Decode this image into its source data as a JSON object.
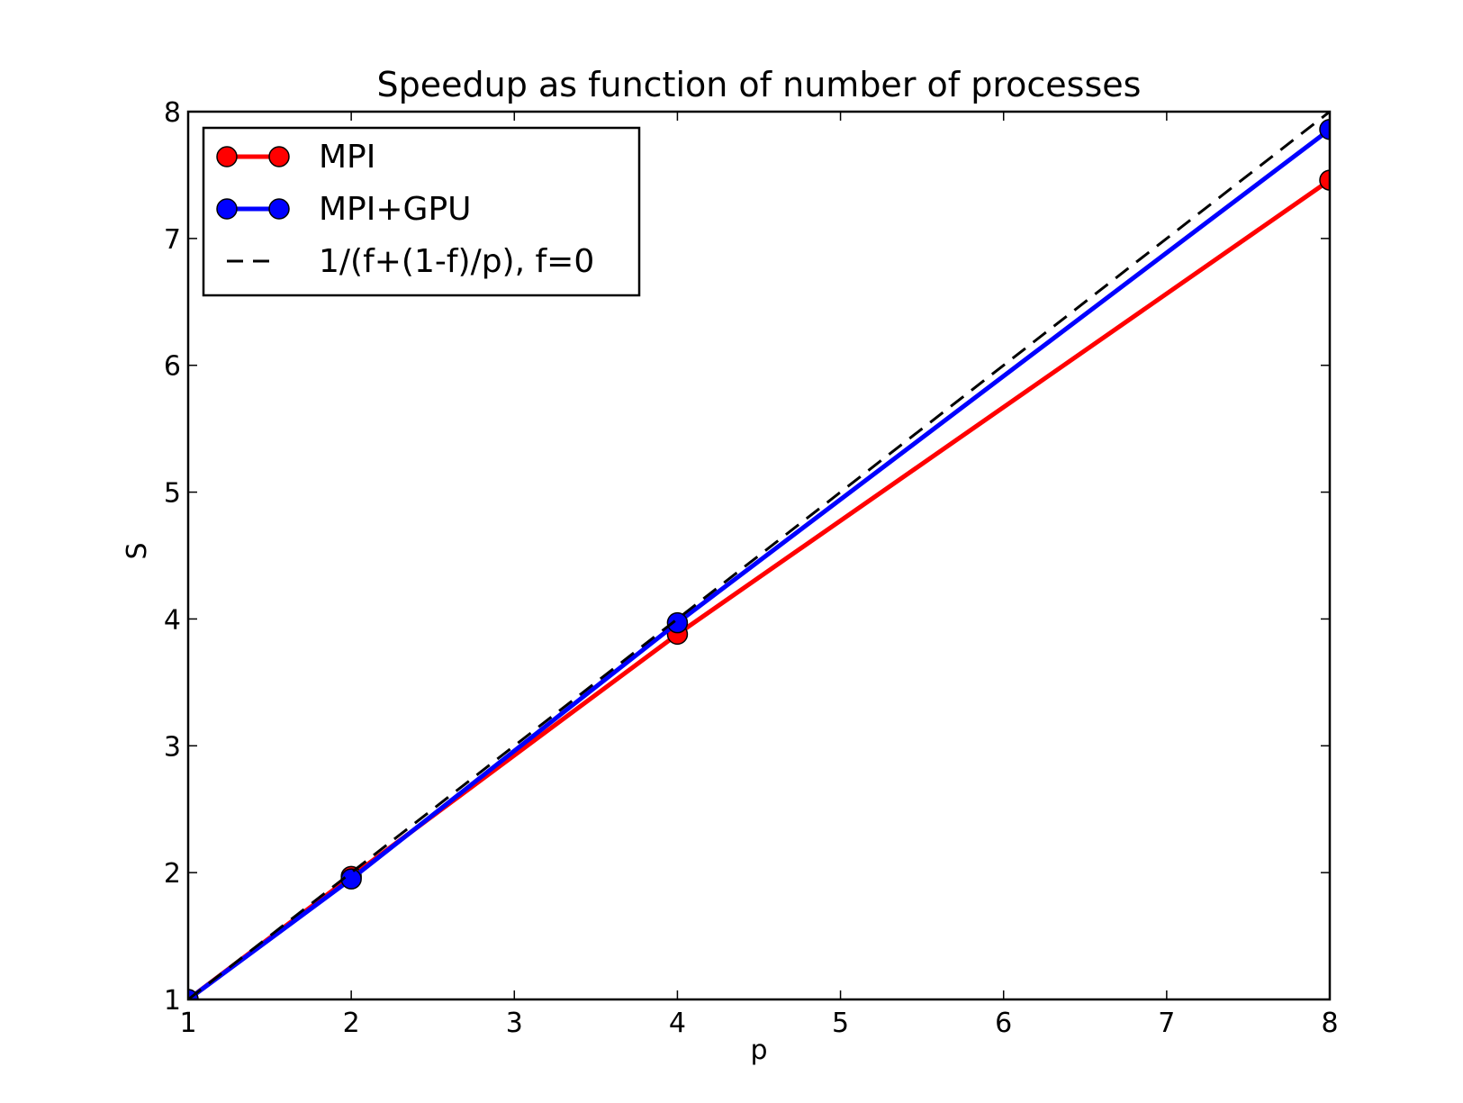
{
  "chart_data": {
    "type": "line",
    "title": "Speedup as function of number of processes",
    "xlabel": "p",
    "ylabel": "S",
    "xlim": [
      1,
      8
    ],
    "ylim": [
      1,
      8
    ],
    "xticks": [
      "1",
      "2",
      "3",
      "4",
      "5",
      "6",
      "7",
      "8"
    ],
    "yticks": [
      "1",
      "2",
      "3",
      "4",
      "5",
      "6",
      "7",
      "8"
    ],
    "grid": false,
    "legend_position": "top-left",
    "series": [
      {
        "name": "MPI",
        "color": "#ff0000",
        "style": "solid-with-circle-markers",
        "x": [
          1,
          2,
          4,
          8
        ],
        "y": [
          1.0,
          1.97,
          3.88,
          7.46
        ]
      },
      {
        "name": "MPI+GPU",
        "color": "#0000ff",
        "style": "solid-with-circle-markers",
        "x": [
          1,
          2,
          4,
          8
        ],
        "y": [
          1.0,
          1.95,
          3.97,
          7.86
        ]
      },
      {
        "name": "1/(f+(1-f)/p), f=0",
        "color": "#000000",
        "style": "dashed",
        "x": [
          1,
          8
        ],
        "y": [
          1,
          8
        ]
      }
    ]
  }
}
